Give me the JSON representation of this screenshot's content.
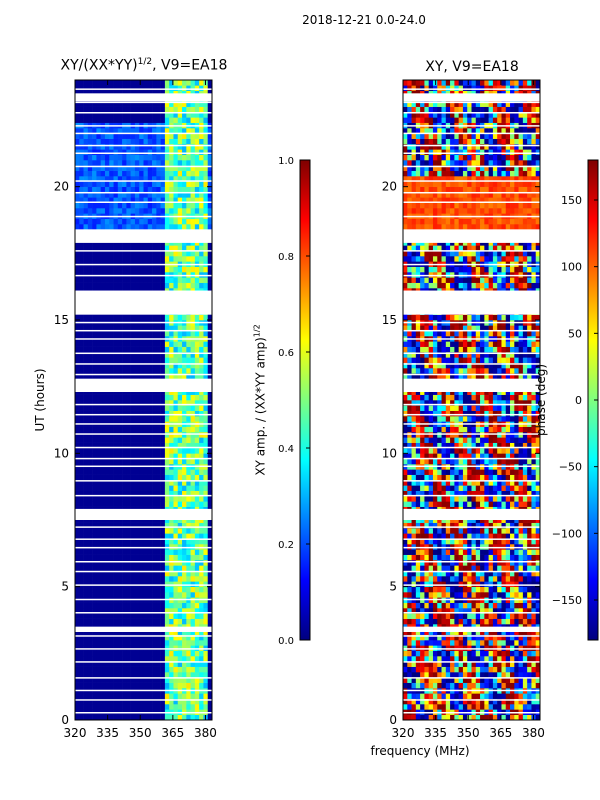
{
  "suptitle": "2018-12-21 0.0-24.0",
  "colors": {
    "jet": [
      "#00007f",
      "#0000ff",
      "#007fff",
      "#00ffff",
      "#7fff7f",
      "#ffff00",
      "#ff7f00",
      "#ff0000",
      "#7f0000"
    ],
    "background": "#ffffff",
    "axis": "#000000"
  },
  "chart_data": [
    {
      "type": "heatmap",
      "title_prefix": "XY/(XX*YY)",
      "title_exponent": "1/2",
      "title_suffix": ", V9=EA18",
      "xlabel": "",
      "ylabel": "UT (hours)",
      "xlim": [
        320,
        383
      ],
      "ylim": [
        0,
        24
      ],
      "xticks": [
        320,
        335,
        350,
        365,
        380
      ],
      "yticks": [
        0,
        5,
        10,
        15,
        20
      ],
      "colorbar": {
        "label_prefix": "XY amp. / (XX*YY amp)",
        "label_exponent": "1/2",
        "range": [
          0.0,
          1.0
        ],
        "ticks": [
          "0.0",
          "0.2",
          "0.4",
          "0.6",
          "0.8",
          "1.0"
        ]
      }
    },
    {
      "type": "heatmap",
      "title": "XY, V9=EA18",
      "xlabel": "frequency (MHz)",
      "ylabel": "",
      "xlim": [
        320,
        383
      ],
      "ylim": [
        0,
        24
      ],
      "xticks": [
        320,
        335,
        350,
        365,
        380
      ],
      "yticks": [
        0,
        5,
        10,
        15,
        20
      ],
      "colorbar": {
        "label": "phase (deg)",
        "range": [
          -180,
          180
        ],
        "ticks": [
          "−150",
          "−100",
          "−50",
          "0",
          "50",
          "100",
          "150"
        ]
      }
    }
  ]
}
